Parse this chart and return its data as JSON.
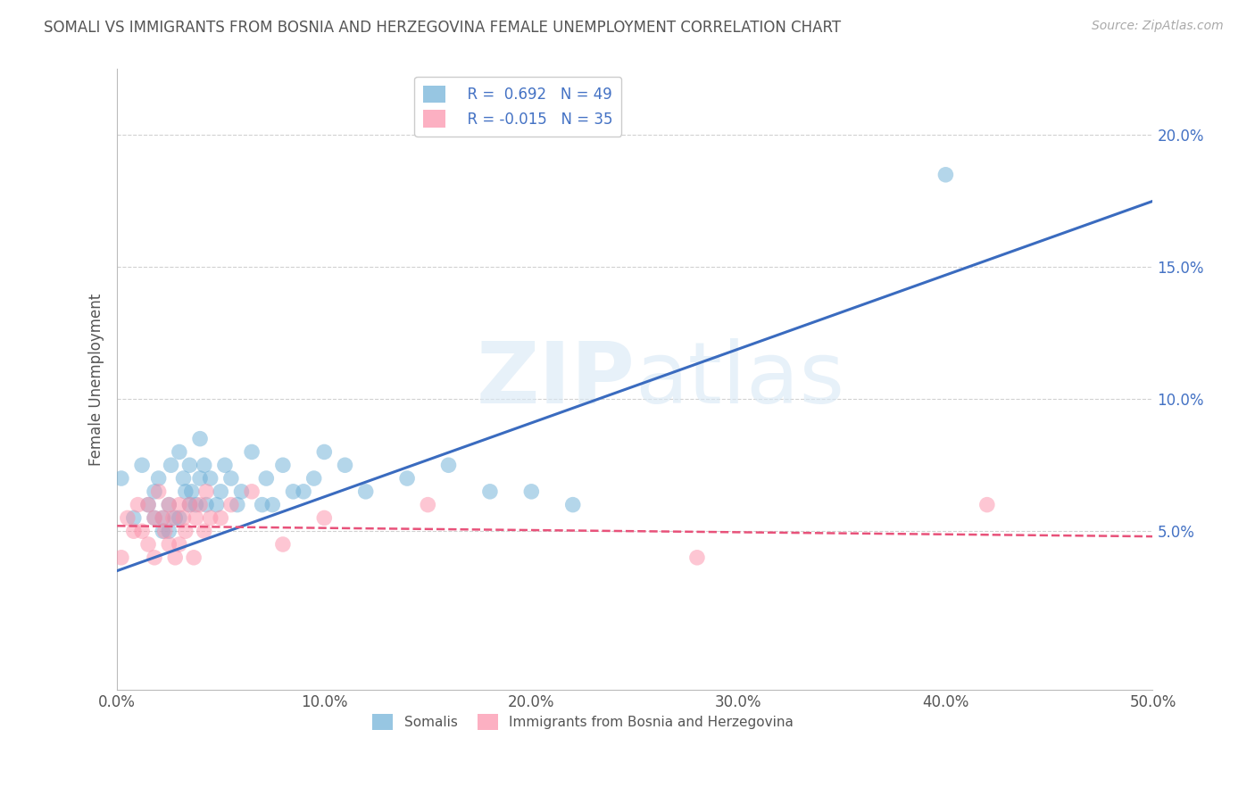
{
  "title": "SOMALI VS IMMIGRANTS FROM BOSNIA AND HERZEGOVINA FEMALE UNEMPLOYMENT CORRELATION CHART",
  "source": "Source: ZipAtlas.com",
  "ylabel": "Female Unemployment",
  "xlim": [
    0.0,
    0.5
  ],
  "ylim": [
    -0.01,
    0.225
  ],
  "yticks": [
    0.05,
    0.1,
    0.15,
    0.2
  ],
  "ytick_labels": [
    "5.0%",
    "10.0%",
    "15.0%",
    "20.0%"
  ],
  "xticks": [
    0.0,
    0.1,
    0.2,
    0.3,
    0.4,
    0.5
  ],
  "xtick_labels": [
    "0.0%",
    "10.0%",
    "20.0%",
    "30.0%",
    "40.0%",
    "50.0%"
  ],
  "somali_color": "#6baed6",
  "bosnia_color": "#fc8fa8",
  "somali_line_color": "#3a6bbf",
  "bosnia_line_color": "#e8527a",
  "somali_R": 0.692,
  "somali_N": 49,
  "bosnia_R": -0.015,
  "bosnia_N": 35,
  "watermark": "ZIPAtlas",
  "legend_somalis": "Somalis",
  "legend_bosnia": "Immigrants from Bosnia and Herzegovina",
  "somali_x": [
    0.002,
    0.008,
    0.012,
    0.015,
    0.018,
    0.018,
    0.02,
    0.022,
    0.022,
    0.025,
    0.025,
    0.026,
    0.028,
    0.03,
    0.03,
    0.032,
    0.033,
    0.035,
    0.035,
    0.036,
    0.038,
    0.04,
    0.04,
    0.042,
    0.043,
    0.045,
    0.048,
    0.05,
    0.052,
    0.055,
    0.058,
    0.06,
    0.065,
    0.07,
    0.072,
    0.075,
    0.08,
    0.085,
    0.09,
    0.095,
    0.1,
    0.11,
    0.12,
    0.14,
    0.16,
    0.18,
    0.2,
    0.22,
    0.4
  ],
  "somali_y": [
    0.07,
    0.055,
    0.075,
    0.06,
    0.065,
    0.055,
    0.07,
    0.055,
    0.05,
    0.06,
    0.05,
    0.075,
    0.055,
    0.08,
    0.055,
    0.07,
    0.065,
    0.06,
    0.075,
    0.065,
    0.06,
    0.085,
    0.07,
    0.075,
    0.06,
    0.07,
    0.06,
    0.065,
    0.075,
    0.07,
    0.06,
    0.065,
    0.08,
    0.06,
    0.07,
    0.06,
    0.075,
    0.065,
    0.065,
    0.07,
    0.08,
    0.075,
    0.065,
    0.07,
    0.075,
    0.065,
    0.065,
    0.06,
    0.185
  ],
  "somali_line_x": [
    0.0,
    0.5
  ],
  "somali_line_y": [
    0.035,
    0.175
  ],
  "bosnia_x": [
    0.002,
    0.005,
    0.008,
    0.01,
    0.012,
    0.015,
    0.015,
    0.018,
    0.018,
    0.02,
    0.022,
    0.023,
    0.025,
    0.025,
    0.027,
    0.028,
    0.03,
    0.03,
    0.032,
    0.033,
    0.035,
    0.037,
    0.038,
    0.04,
    0.042,
    0.043,
    0.045,
    0.05,
    0.055,
    0.065,
    0.08,
    0.1,
    0.15,
    0.28,
    0.42
  ],
  "bosnia_y": [
    0.04,
    0.055,
    0.05,
    0.06,
    0.05,
    0.06,
    0.045,
    0.055,
    0.04,
    0.065,
    0.055,
    0.05,
    0.06,
    0.045,
    0.055,
    0.04,
    0.06,
    0.045,
    0.055,
    0.05,
    0.06,
    0.04,
    0.055,
    0.06,
    0.05,
    0.065,
    0.055,
    0.055,
    0.06,
    0.065,
    0.045,
    0.055,
    0.06,
    0.04,
    0.06
  ],
  "bosnia_line_x": [
    0.0,
    0.5
  ],
  "bosnia_line_y": [
    0.052,
    0.048
  ]
}
